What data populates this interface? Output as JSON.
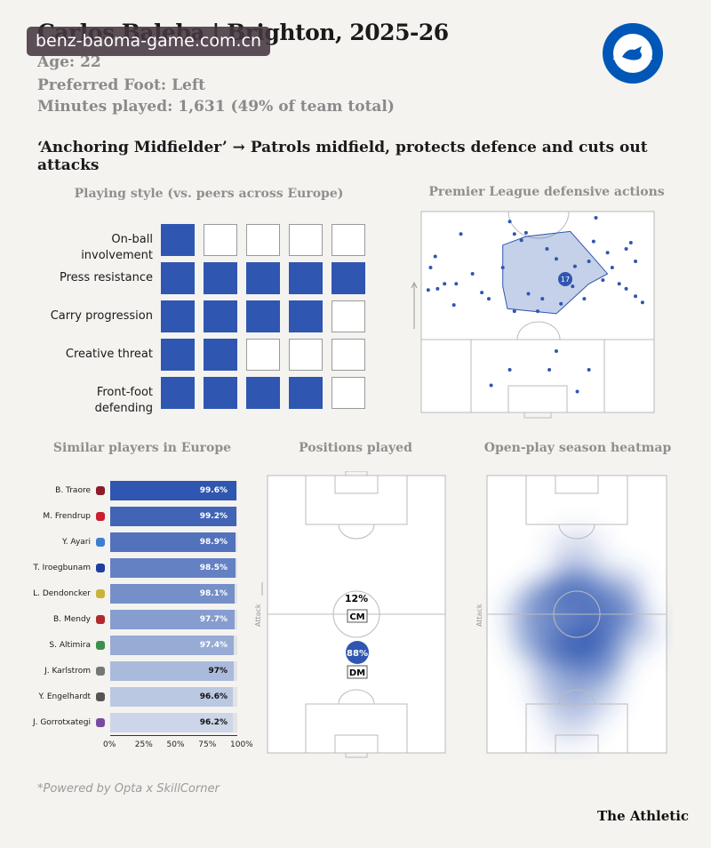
{
  "header": {
    "title": "Carlos Baleba | Brighton, 2025-26",
    "age": "Age: 22",
    "foot": "Preferred Foot: Left",
    "minutes": "Minutes played: 1,631 (49% of team total)",
    "headline": "‘Anchoring Midfielder’ → Patrols midfield, protects defence and cuts out attacks",
    "watermark": "benz-baoma-game.com.cn",
    "badge": {
      "top": "BRIGHTON & HOVE",
      "bottom": "ALBION",
      "color": "#0057b8"
    }
  },
  "colors": {
    "accent": "#2f56b0",
    "muted": "#8f8f8f"
  },
  "chart_data": [
    {
      "type": "table",
      "title": "Playing style (vs. peers across Europe)",
      "rows": [
        {
          "label": "On-ball involvement",
          "filled": 1,
          "max": 5
        },
        {
          "label": "Press resistance",
          "filled": 5,
          "max": 5
        },
        {
          "label": "Carry progression",
          "filled": 4,
          "max": 5
        },
        {
          "label": "Creative threat",
          "filled": 2,
          "max": 5
        },
        {
          "label": "Front-foot defending",
          "filled": 4,
          "max": 5
        }
      ]
    },
    {
      "type": "scatter",
      "title": "Premier League defensive actions",
      "annotation": "17",
      "points": [
        [
          75,
          5
        ],
        [
          38,
          8
        ],
        [
          17,
          18
        ],
        [
          40,
          18
        ],
        [
          45,
          17
        ],
        [
          43,
          23
        ],
        [
          54,
          30
        ],
        [
          58,
          38
        ],
        [
          72,
          40
        ],
        [
          66,
          44
        ],
        [
          22,
          50
        ],
        [
          15,
          58
        ],
        [
          10,
          58
        ],
        [
          7,
          62
        ],
        [
          3,
          63
        ],
        [
          26,
          65
        ],
        [
          29,
          70
        ],
        [
          14,
          75
        ],
        [
          40,
          80
        ],
        [
          50,
          80
        ],
        [
          58,
          82
        ],
        [
          30,
          93
        ],
        [
          38,
          88
        ],
        [
          55,
          88
        ],
        [
          67,
          95
        ],
        [
          72,
          88
        ],
        [
          85,
          58
        ],
        [
          88,
          62
        ],
        [
          92,
          68
        ],
        [
          95,
          73
        ],
        [
          78,
          55
        ],
        [
          82,
          45
        ],
        [
          90,
          25
        ],
        [
          88,
          30
        ],
        [
          6,
          36
        ],
        [
          4,
          45
        ],
        [
          92,
          40
        ],
        [
          60,
          74
        ],
        [
          46,
          66
        ],
        [
          52,
          70
        ],
        [
          80,
          33
        ],
        [
          74,
          24
        ],
        [
          65,
          60
        ],
        [
          70,
          70
        ],
        [
          35,
          45
        ],
        [
          62,
          52
        ]
      ],
      "hull": [
        [
          45,
          20
        ],
        [
          64,
          16
        ],
        [
          73,
          35
        ],
        [
          80,
          50
        ],
        [
          72,
          58
        ],
        [
          58,
          82
        ],
        [
          37,
          78
        ],
        [
          35,
          60
        ],
        [
          35,
          27
        ]
      ]
    },
    {
      "type": "bar",
      "title": "Similar players in Europe",
      "categories": [
        "B. Traore",
        "M. Frendrup",
        "Y. Ayari",
        "T. Iroegbunam",
        "L. Dendoncker",
        "B. Mendy",
        "S. Altimira",
        "J. Karlstrom",
        "Y. Engelhardt",
        "J. Gorrotxategi"
      ],
      "values": [
        99.6,
        99.2,
        98.9,
        98.5,
        98.1,
        97.7,
        97.4,
        97,
        96.6,
        96.2
      ],
      "value_labels": [
        "99.6%",
        "99.2%",
        "98.9%",
        "98.5%",
        "98.1%",
        "97.7%",
        "97.4%",
        "97%",
        "96.6%",
        "96.2%"
      ],
      "club_colors": [
        "#8a1c2b",
        "#c8202f",
        "#3f7fd0",
        "#1f3fa0",
        "#c8b43a",
        "#b22a2a",
        "#3d8f4b",
        "#777777",
        "#555555",
        "#7a4aa0"
      ],
      "xticks": [
        "0%",
        "25%",
        "50%",
        "75%",
        "100%"
      ],
      "xlim": [
        0,
        100
      ]
    },
    {
      "type": "table",
      "title": "Positions played",
      "axis_label": "Attack",
      "positions": [
        {
          "label": "CM",
          "pct": "12%",
          "share": 12
        },
        {
          "label": "DM",
          "pct": "88%",
          "share": 88
        }
      ]
    },
    {
      "type": "heatmap",
      "title": "Open-play season heatmap",
      "axis_label": "Attack",
      "blobs": [
        [
          50,
          42,
          1
        ],
        [
          68,
          50,
          0.8
        ],
        [
          35,
          45,
          0.7
        ],
        [
          55,
          58,
          1
        ],
        [
          45,
          62,
          0.9
        ],
        [
          62,
          66,
          0.8
        ],
        [
          30,
          60,
          0.6
        ],
        [
          72,
          42,
          0.5
        ],
        [
          40,
          75,
          0.5
        ],
        [
          58,
          78,
          0.4
        ],
        [
          25,
          50,
          0.45
        ],
        [
          80,
          55,
          0.4
        ],
        [
          50,
          28,
          0.3
        ],
        [
          46,
          88,
          0.3
        ]
      ]
    }
  ],
  "footer": {
    "note": "*Powered by Opta x SkillCorner",
    "brand": "The Athletic"
  }
}
